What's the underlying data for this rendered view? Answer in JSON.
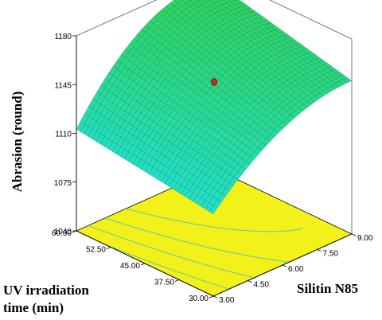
{
  "chart_data": {
    "type": "surface3d",
    "zlabel": "Abrasion (round)",
    "xlabel": "Silitin N85",
    "ylabel_line1": "UV irradiation",
    "ylabel_line2": "time (min)",
    "x_ticks": [
      "3.00",
      "4.50",
      "6.00",
      "7.50",
      "9.00"
    ],
    "y_ticks": [
      "30.00",
      "37.50",
      "45.00",
      "52.50",
      "60.00"
    ],
    "z_ticks": [
      "1040",
      "1075",
      "1110",
      "1145",
      "1180"
    ],
    "xlim": [
      3,
      9
    ],
    "ylim": [
      30,
      60
    ],
    "zlim": [
      1040,
      1180
    ],
    "corner_values": [
      {
        "silitin": 3,
        "uv_time": 60,
        "abrasion": 1113
      },
      {
        "silitin": 9,
        "uv_time": 60,
        "abrasion": 1174
      },
      {
        "silitin": 3,
        "uv_time": 30,
        "abrasion": 1099
      },
      {
        "silitin": 9,
        "uv_time": 30,
        "abrasion": 1150
      }
    ],
    "design_point": {
      "silitin": 6,
      "uv_time": 45,
      "abrasion": 1148
    },
    "colors": {
      "surface_high": "#2fd35a",
      "surface_low": "#21e0d2",
      "mesh": "#0e6a3a",
      "floor": "#f2f21a",
      "contour": "#6ec8a0",
      "point": "#e0201c"
    }
  }
}
